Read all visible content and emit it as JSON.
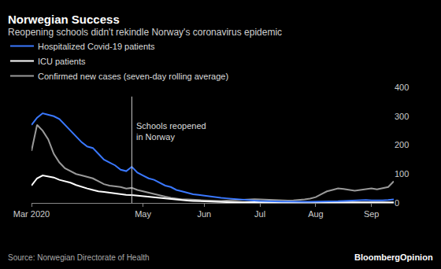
{
  "chart_data": {
    "type": "line",
    "title": "Norwegian Success",
    "subtitle": "Reopening schools didn't rekindle Norway's coronavirus epidemic",
    "source": "Source: Norwegian Directorate of Health",
    "credit": "BloombergOpinion",
    "categories": [
      "Mar 2020",
      null,
      null,
      null,
      null,
      null,
      null,
      null,
      null,
      null,
      null,
      null,
      null,
      null,
      null,
      null,
      null,
      null,
      null,
      null,
      "May",
      null,
      null,
      null,
      null,
      null,
      null,
      null,
      null,
      null,
      null,
      "Jun",
      null,
      null,
      null,
      null,
      null,
      null,
      null,
      null,
      null,
      "Jul",
      null,
      null,
      null,
      null,
      null,
      null,
      null,
      null,
      null,
      "Aug",
      null,
      null,
      null,
      null,
      null,
      null,
      null,
      null,
      null,
      "Sep",
      null,
      null,
      null,
      null
    ],
    "series": [
      {
        "name": "Hospitalized Covid-19 patients",
        "color": "#3a78ff",
        "values": [
          270,
          295,
          310,
          305,
          300,
          290,
          270,
          250,
          230,
          210,
          195,
          190,
          170,
          150,
          140,
          130,
          115,
          110,
          125,
          105,
          95,
          85,
          80,
          70,
          60,
          55,
          45,
          40,
          35,
          30,
          28,
          25,
          22,
          20,
          18,
          16,
          14,
          12,
          10,
          9,
          8,
          7,
          6,
          6,
          5,
          5,
          5,
          4,
          4,
          4,
          4,
          4,
          4,
          5,
          5,
          6,
          7,
          8,
          9,
          10,
          10,
          9,
          8,
          9,
          10,
          12
        ]
      },
      {
        "name": "ICU patients",
        "color": "#ffffff",
        "values": [
          60,
          85,
          95,
          92,
          88,
          80,
          75,
          70,
          62,
          55,
          50,
          45,
          40,
          38,
          35,
          32,
          30,
          28,
          27,
          25,
          22,
          20,
          18,
          16,
          14,
          12,
          10,
          9,
          8,
          7,
          6,
          5,
          5,
          4,
          4,
          3,
          3,
          3,
          2,
          2,
          2,
          2,
          2,
          2,
          2,
          1,
          1,
          1,
          1,
          1,
          1,
          1,
          1,
          1,
          1,
          1,
          1,
          1,
          1,
          2,
          2,
          2,
          2,
          2,
          2,
          2
        ]
      },
      {
        "name": "Confirmed new cases (seven-day rolling average)",
        "color": "#9a9a9a",
        "values": [
          180,
          270,
          250,
          220,
          170,
          140,
          120,
          110,
          100,
          95,
          90,
          85,
          75,
          65,
          60,
          58,
          55,
          50,
          52,
          45,
          40,
          35,
          30,
          25,
          22,
          18,
          15,
          12,
          12,
          10,
          10,
          9,
          8,
          8,
          7,
          8,
          9,
          10,
          12,
          12,
          13,
          12,
          11,
          10,
          9,
          8,
          8,
          9,
          10,
          12,
          15,
          20,
          30,
          40,
          45,
          50,
          48,
          45,
          42,
          45,
          48,
          50,
          47,
          50,
          55,
          75
        ]
      }
    ],
    "ylim": [
      0,
      400
    ],
    "yticks": [
      0,
      100,
      200,
      300,
      400
    ],
    "grid": false,
    "legend": "top-left",
    "annotations": [
      {
        "text": [
          "Schools reopened",
          "in Norway"
        ],
        "x": 18
      }
    ]
  }
}
